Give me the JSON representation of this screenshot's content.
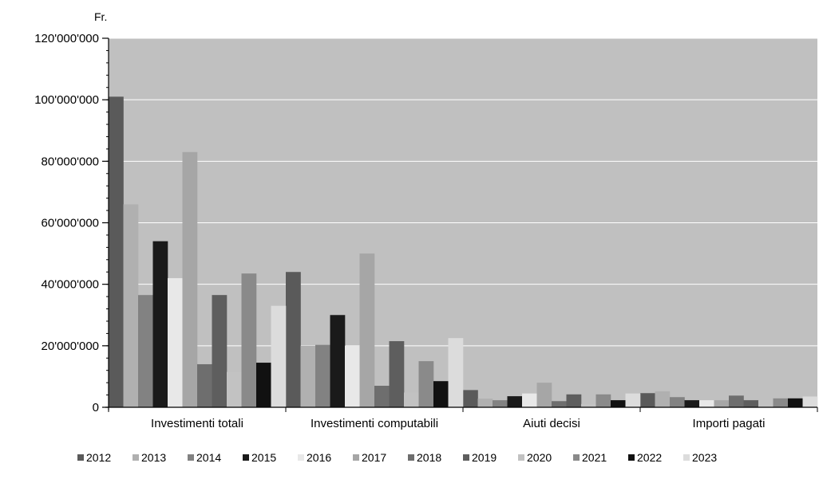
{
  "chart_data": {
    "type": "bar",
    "ylabel": "Fr.",
    "ylim": [
      0,
      120000000
    ],
    "yticks": [
      0,
      20000000,
      40000000,
      60000000,
      80000000,
      100000000,
      120000000
    ],
    "ytick_labels": [
      "0",
      "20'000'000",
      "40'000'000",
      "60'000'000",
      "80'000'000",
      "100'000'000",
      "120'000'000"
    ],
    "grid": true,
    "legend_position": "bottom",
    "categories": [
      "Investimenti totali",
      "Investimenti computabili",
      "Aiuti decisi",
      "Importi pagati"
    ],
    "series": [
      {
        "name": "2012",
        "color": "#5a5a5a",
        "values": [
          101000000,
          44000000,
          5600000,
          4600000
        ]
      },
      {
        "name": "2013",
        "color": "#b0b0b0",
        "values": [
          66000000,
          20000000,
          2800000,
          5200000
        ]
      },
      {
        "name": "2014",
        "color": "#828282",
        "values": [
          36500000,
          20300000,
          2300000,
          3300000
        ]
      },
      {
        "name": "2015",
        "color": "#1a1a1a",
        "values": [
          54000000,
          30000000,
          3600000,
          2300000
        ]
      },
      {
        "name": "2016",
        "color": "#e8e8e8",
        "values": [
          42000000,
          20000000,
          4500000,
          2300000
        ]
      },
      {
        "name": "2017",
        "color": "#a6a6a6",
        "values": [
          83000000,
          50000000,
          8000000,
          2300000
        ]
      },
      {
        "name": "2018",
        "color": "#6e6e6e",
        "values": [
          14000000,
          7000000,
          2000000,
          3800000
        ]
      },
      {
        "name": "2019",
        "color": "#5e5e5e",
        "values": [
          36500000,
          21500000,
          4200000,
          2300000
        ]
      },
      {
        "name": "2020",
        "color": "#c2c2c2",
        "values": [
          11500000,
          4800000,
          1100000,
          2300000
        ]
      },
      {
        "name": "2021",
        "color": "#8a8a8a",
        "values": [
          43500000,
          15000000,
          4200000,
          2900000
        ]
      },
      {
        "name": "2022",
        "color": "#111111",
        "values": [
          14500000,
          8500000,
          2300000,
          2900000
        ]
      },
      {
        "name": "2023",
        "color": "#dcdcdc",
        "values": [
          33000000,
          22500000,
          4500000,
          3500000
        ]
      }
    ],
    "plot_background": "#c0c0c0",
    "gridline_color": "#ffffff"
  }
}
